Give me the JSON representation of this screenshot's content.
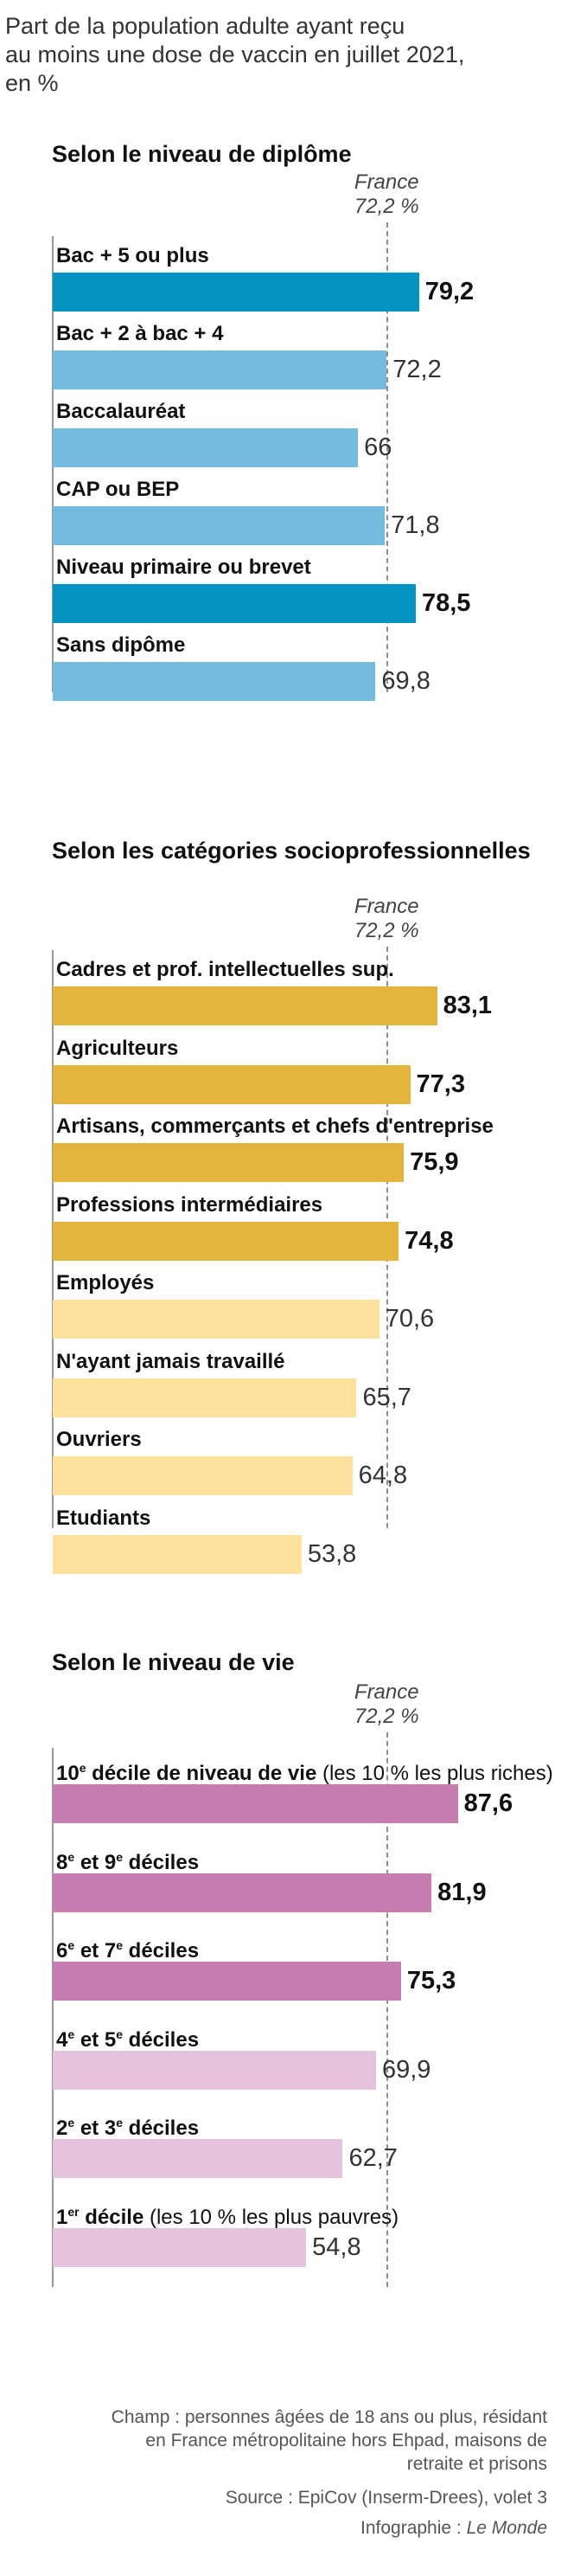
{
  "intro": "Part de la population adulte ayant reçu\nau moins une dose de vaccin en juillet 2021,\nen %",
  "reference": {
    "label": "France",
    "value_text": "72,2 %",
    "value": 72.2
  },
  "footer": {
    "notes": "Champ : personnes âgées de 18 ans ou plus, résidant en France métropolitaine hors Ehpad, maisons de retraite et prisons",
    "source": "Source : EpiCov (Inserm-Drees), volet 3",
    "credit_prefix": "Infographie : ",
    "credit_brand": "Le Monde"
  },
  "colors": {
    "diplome_dark": "#0494c4",
    "diplome_light": "#74bcdf",
    "csp_dark": "#e4b43c",
    "csp_light": "#fde19c",
    "vie_dark": "#c77db1",
    "vie_light": "#e6c3dc"
  },
  "chart_data": [
    {
      "type": "bar",
      "orientation": "horizontal",
      "title": "Selon le niveau de diplôme",
      "reference_line": 72.2,
      "categories": [
        "Bac + 5 ou plus",
        "Bac + 2 à bac + 4",
        "Baccalauréat",
        "CAP ou BEP",
        "Niveau primaire ou brevet",
        "Sans dipôme"
      ],
      "values": [
        79.2,
        72.2,
        66,
        71.8,
        78.5,
        69.8
      ],
      "labels": [
        "79,2",
        "72,2",
        "66",
        "71,8",
        "78,5",
        "69,8"
      ],
      "highlight": [
        true,
        false,
        false,
        false,
        true,
        false
      ]
    },
    {
      "type": "bar",
      "orientation": "horizontal",
      "title": "Selon les catégories socioprofessionnelles",
      "reference_line": 72.2,
      "categories": [
        "Cadres et prof. intellectuelles sup.",
        "Agriculteurs",
        "Artisans, commerçants et chefs d'entreprise",
        "Professions intermédiaires",
        "Employés",
        "N'ayant jamais travaillé",
        "Ouvriers",
        "Etudiants"
      ],
      "values": [
        83.1,
        77.3,
        75.9,
        74.8,
        70.6,
        65.7,
        64.8,
        53.8
      ],
      "labels": [
        "83,1",
        "77,3",
        "75,9",
        "74,8",
        "70,6",
        "65,7",
        "64,8",
        "53,8"
      ],
      "highlight": [
        true,
        true,
        true,
        true,
        false,
        false,
        false,
        false
      ]
    },
    {
      "type": "bar",
      "orientation": "horizontal",
      "title": "Selon le niveau de vie",
      "reference_line": 72.2,
      "categories": [
        {
          "main": "10",
          "sup": "e",
          "rest": " décile de niveau de vie",
          "suffix": " (les 10 % les plus riches)"
        },
        {
          "main": "8",
          "sup": "e",
          "rest": " et 9",
          "sup2": "e",
          "rest2": " déciles"
        },
        {
          "main": "6",
          "sup": "e",
          "rest": " et 7",
          "sup2": "e",
          "rest2": " déciles"
        },
        {
          "main": "4",
          "sup": "e",
          "rest": " et 5",
          "sup2": "e",
          "rest2": " déciles"
        },
        {
          "main": "2",
          "sup": "e",
          "rest": " et 3",
          "sup2": "e",
          "rest2": " déciles"
        },
        {
          "main": "1",
          "sup": "er",
          "rest": " décile",
          "suffix": " (les 10 % les plus pauvres)"
        }
      ],
      "values": [
        87.6,
        81.9,
        75.3,
        69.9,
        62.7,
        54.8
      ],
      "labels": [
        "87,6",
        "81,9",
        "75,3",
        "69,9",
        "62,7",
        "54,8"
      ],
      "highlight": [
        true,
        true,
        true,
        false,
        false,
        false
      ]
    }
  ]
}
